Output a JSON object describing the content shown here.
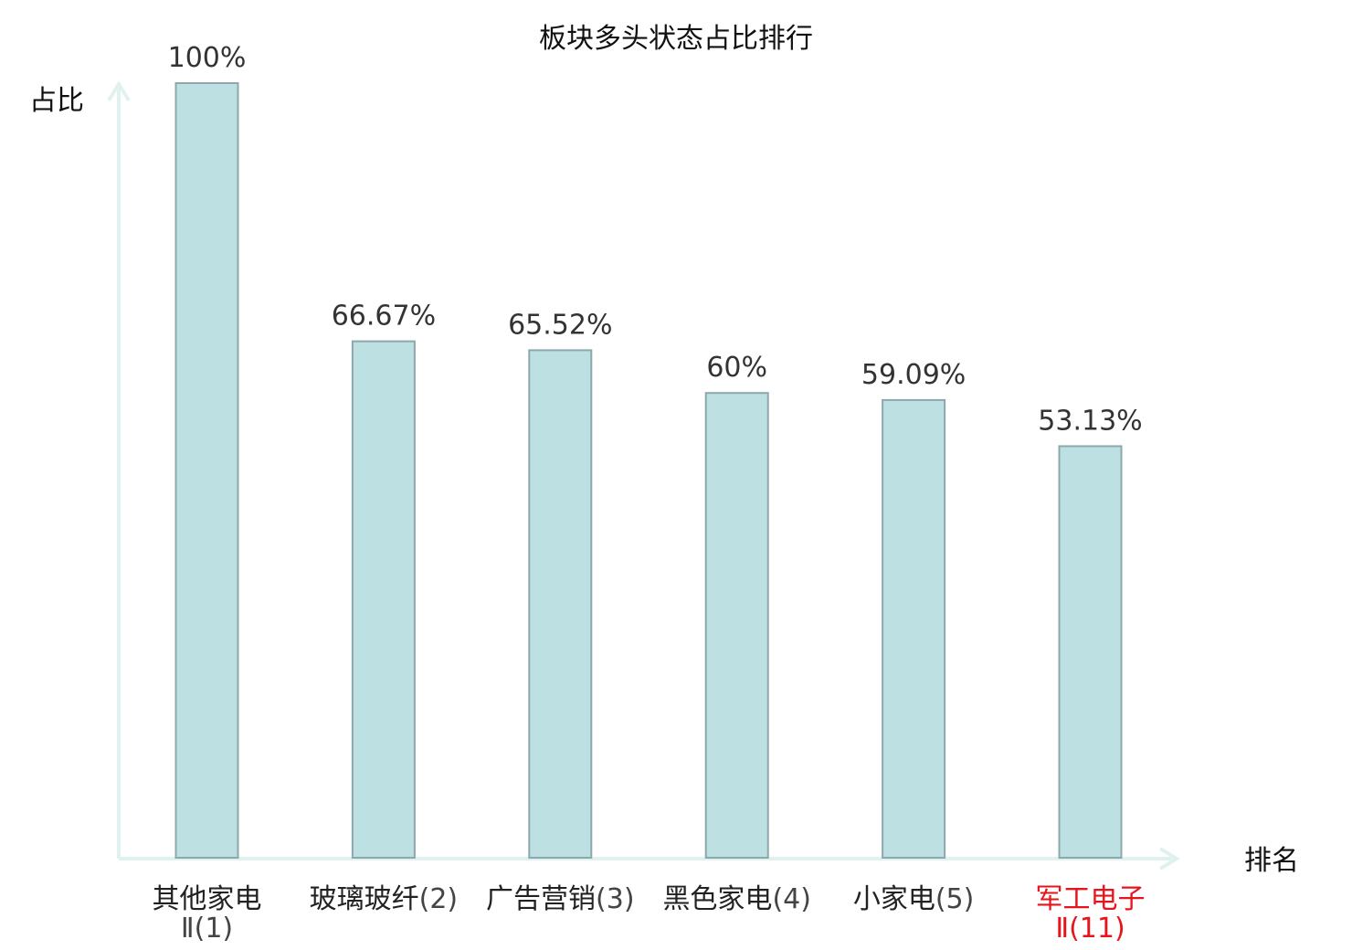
{
  "chart_data": {
    "type": "bar",
    "title": "板块多头状态占比排行",
    "ylabel": "占比",
    "xlabel": "排名",
    "ylim": [
      0,
      100
    ],
    "grid": false,
    "categories": [
      {
        "name": "其他家电",
        "rank": "Ⅱ(1)",
        "highlight": false
      },
      {
        "name": "玻璃玻纤",
        "rank": "(2)",
        "highlight": false
      },
      {
        "name": "广告营销",
        "rank": "(3)",
        "highlight": false
      },
      {
        "name": "黑色家电",
        "rank": "(4)",
        "highlight": false
      },
      {
        "name": "小家电",
        "rank": "(5)",
        "highlight": false
      },
      {
        "name": "军工电子",
        "rank": "Ⅱ(11)",
        "highlight": true
      }
    ],
    "values": [
      100,
      66.67,
      65.52,
      60,
      59.09,
      53.13
    ],
    "value_labels": [
      "100%",
      "66.67%",
      "65.52%",
      "60%",
      "59.09%",
      "53.13%"
    ],
    "colors": {
      "bar_fill": "#bde0e2",
      "bar_stroke": "#8ca8aa",
      "axis": "#e0f2f0",
      "label_normal": "#222222",
      "label_rank": "#444444",
      "label_highlight": "#e8141c"
    }
  }
}
